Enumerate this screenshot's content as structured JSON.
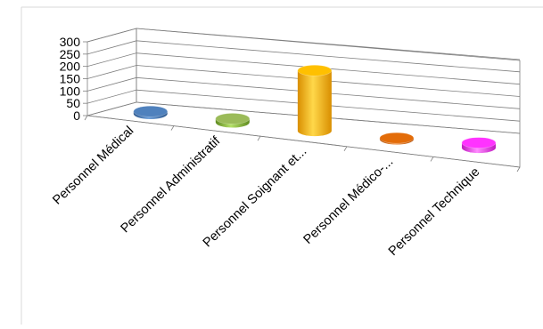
{
  "chart_data": {
    "type": "bar",
    "variant": "3d-cylinder",
    "categories": [
      "Personnel Médical",
      "Personnel Administratif",
      "Personnel Soignant et...",
      "Personnel Médico-...",
      "Personnel Technique"
    ],
    "values": [
      10,
      15,
      245,
      5,
      20
    ],
    "colors": [
      "#4f81bd",
      "#9bbb59",
      "#ffc000",
      "#e36c09",
      "#ff33ff"
    ],
    "ylim": [
      0,
      300
    ],
    "yticks": [
      "0",
      "50",
      "100",
      "150",
      "200",
      "250",
      "300"
    ],
    "grid": true,
    "legend": "none"
  }
}
